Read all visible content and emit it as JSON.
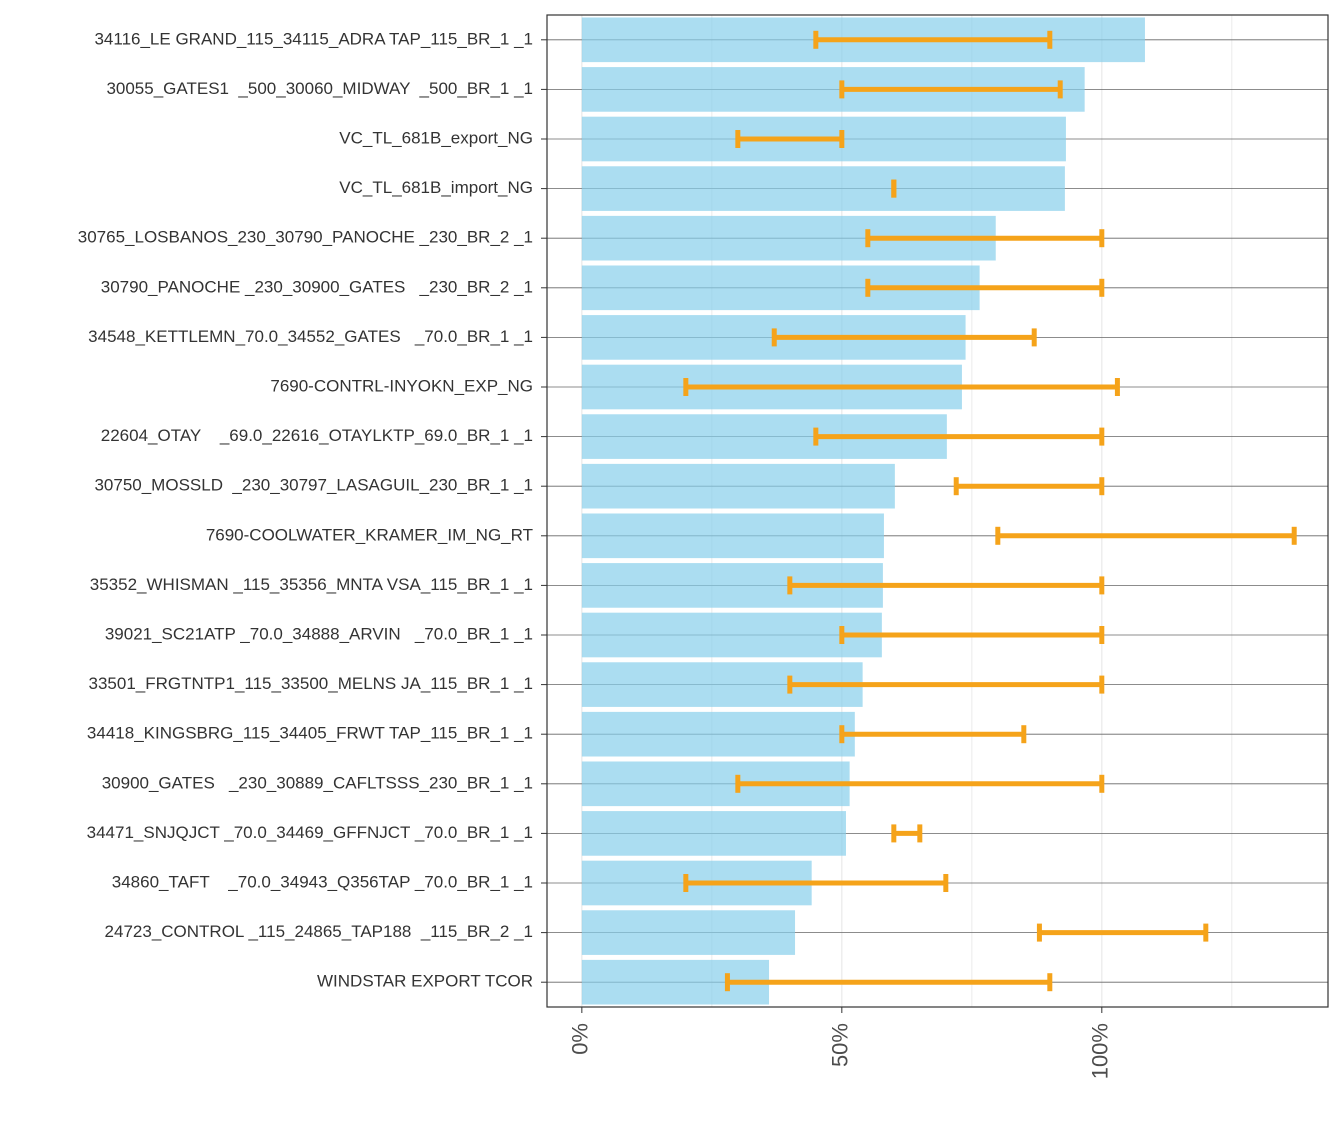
{
  "chart_data": {
    "type": "bar",
    "orientation": "horizontal",
    "categories": [
      "34116_LE GRAND_115_34115_ADRA TAP_115_BR_1 _1",
      "30055_GATES1  _500_30060_MIDWAY  _500_BR_1 _1",
      "VC_TL_681B_export_NG",
      "VC_TL_681B_import_NG",
      "30765_LOSBANOS_230_30790_PANOCHE _230_BR_2 _1",
      "30790_PANOCHE _230_30900_GATES   _230_BR_2 _1",
      "34548_KETTLEMN_70.0_34552_GATES   _70.0_BR_1 _1",
      "7690-CONTRL-INYOKN_EXP_NG",
      "22604_OTAY    _69.0_22616_OTAYLKTP_69.0_BR_1 _1",
      "30750_MOSSLD  _230_30797_LASAGUIL_230_BR_1 _1",
      "7690-COOLWATER_KRAMER_IM_NG_RT",
      "35352_WHISMAN _115_35356_MNTA VSA_115_BR_1 _1",
      "39021_SC21ATP _70.0_34888_ARVIN   _70.0_BR_1 _1",
      "33501_FRGTNTP1_115_33500_MELNS JA_115_BR_1 _1",
      "34418_KINGSBRG_115_34405_FRWT TAP_115_BR_1 _1",
      "30900_GATES   _230_30889_CAFLTSSS_230_BR_1 _1",
      "34471_SNJQJCT _70.0_34469_GFFNJCT _70.0_BR_1 _1",
      "34860_TAFT    _70.0_34943_Q356TAP _70.0_BR_1 _1",
      "24723_CONTROL _115_24865_TAP188  _115_BR_2 _1",
      "WINDSTAR EXPORT TCOR"
    ],
    "values": [
      108.3,
      96.7,
      93.1,
      92.9,
      79.6,
      76.5,
      73.8,
      73.1,
      70.2,
      60.2,
      58.1,
      57.9,
      57.7,
      54.0,
      52.5,
      51.5,
      50.8,
      44.2,
      41.0,
      36.0
    ],
    "range_low": [
      45,
      50,
      30,
      60,
      55,
      55,
      37,
      20,
      45,
      72,
      80,
      40,
      50,
      40,
      50,
      30,
      60,
      20,
      88,
      28
    ],
    "range_high": [
      90,
      92,
      50,
      60,
      100,
      100,
      87,
      103,
      100,
      100,
      137,
      100,
      100,
      100,
      85,
      100,
      65,
      70,
      120,
      90
    ],
    "color": "#87ceeb",
    "range_color": "#f5a31a",
    "xlim": [
      -6.7,
      143.5
    ],
    "xticks": [
      {
        "value": 0,
        "label": "0%"
      },
      {
        "value": 50,
        "label": "50%"
      },
      {
        "value": 100,
        "label": "100%"
      }
    ],
    "grid": true
  }
}
